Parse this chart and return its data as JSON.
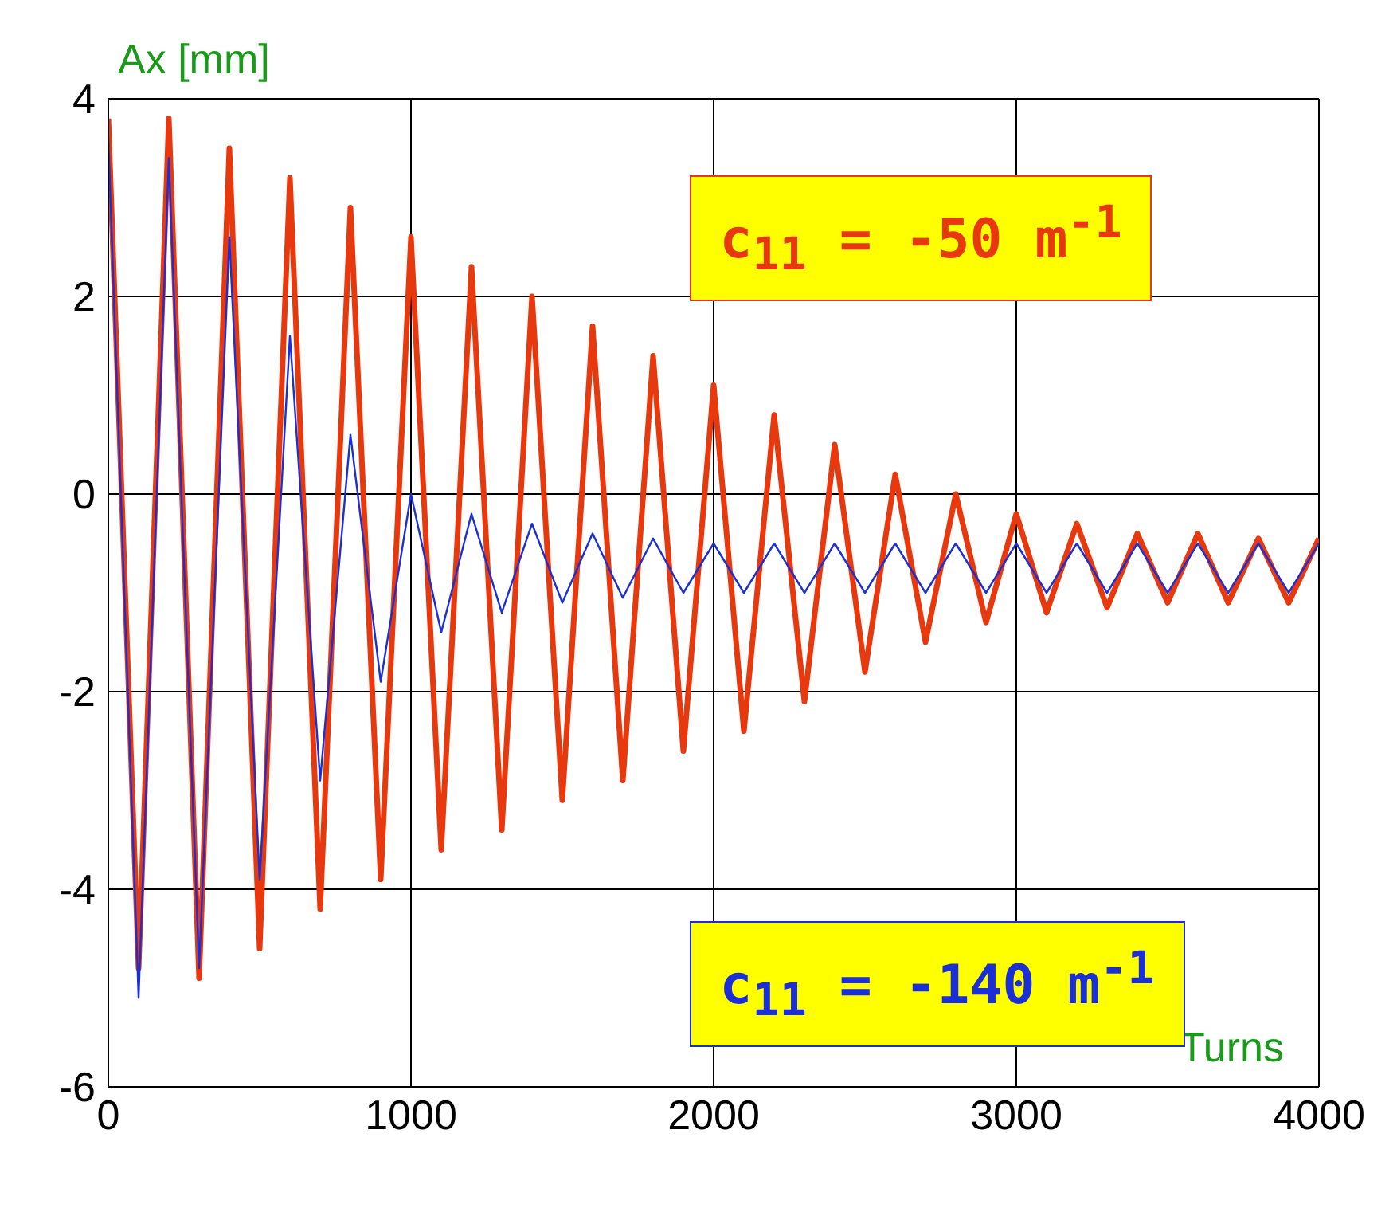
{
  "chart_data": {
    "type": "line",
    "ylabel": "Ax [mm]",
    "xlabel": "Turns",
    "x": [
      0,
      100,
      200,
      300,
      400,
      500,
      600,
      700,
      800,
      900,
      1000,
      1100,
      1200,
      1300,
      1400,
      1500,
      1600,
      1700,
      1800,
      1900,
      2000,
      2100,
      2200,
      2300,
      2400,
      2500,
      2600,
      2700,
      2800,
      2900,
      3000,
      3100,
      3200,
      3300,
      3400,
      3500,
      3600,
      3700,
      3800,
      3900,
      4000
    ],
    "series": [
      {
        "color": "#e8380d",
        "values": [
          3.8,
          -4.8,
          3.8,
          -4.9,
          3.5,
          -4.6,
          3.2,
          -4.2,
          2.9,
          -3.9,
          2.6,
          -3.6,
          2.3,
          -3.4,
          2.0,
          -3.1,
          1.7,
          -2.9,
          1.4,
          -2.6,
          1.1,
          -2.4,
          0.8,
          -2.1,
          0.5,
          -1.8,
          0.2,
          -1.5,
          0.0,
          -1.3,
          -0.2,
          -1.2,
          -0.3,
          -1.15,
          -0.4,
          -1.1,
          -0.4,
          -1.1,
          -0.45,
          -1.1,
          -0.45
        ]
      },
      {
        "color": "#1a2fd6",
        "values": [
          3.6,
          -5.1,
          3.4,
          -4.8,
          2.6,
          -3.9,
          1.6,
          -2.9,
          0.6,
          -1.9,
          0.0,
          -1.4,
          -0.2,
          -1.2,
          -0.3,
          -1.1,
          -0.4,
          -1.05,
          -0.45,
          -1.0,
          -0.5,
          -1.0,
          -0.5,
          -1.0,
          -0.5,
          -1.0,
          -0.5,
          -1.0,
          -0.5,
          -1.0,
          -0.5,
          -1.0,
          -0.5,
          -1.0,
          -0.5,
          -1.0,
          -0.5,
          -1.0,
          -0.5,
          -1.0,
          -0.5
        ]
      }
    ],
    "xlim": [
      0,
      4000
    ],
    "xticks": [
      0,
      1000,
      2000,
      3000,
      4000
    ],
    "ylim": [
      -6,
      4
    ],
    "yticks": [
      -6,
      -4,
      -2,
      0,
      2,
      4
    ],
    "grid": true,
    "legend": false,
    "annotations": [
      "c$_{11}$ = -50 m$^{-1}$",
      "c$_{11}$ = -140 m$^{-1}$"
    ]
  }
}
